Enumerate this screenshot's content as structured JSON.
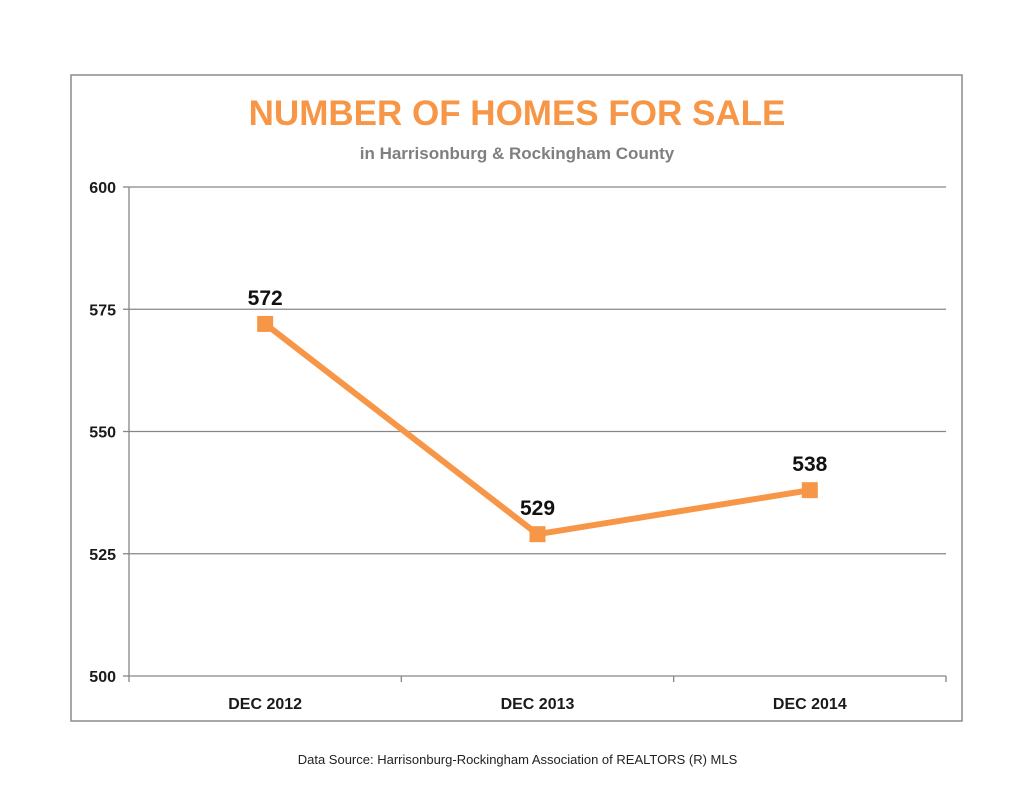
{
  "chart_data": {
    "type": "line",
    "title": "NUMBER OF HOMES  FOR SALE",
    "subtitle": "in Harrisonburg  & Rockingham County",
    "categories": [
      "DEC 2012",
      "DEC 2013",
      "DEC 2014"
    ],
    "values": [
      572,
      529,
      538
    ],
    "data_labels": [
      "572",
      "529",
      "538"
    ],
    "ylim": [
      500,
      600
    ],
    "yticks": [
      "500",
      "525",
      "550",
      "575",
      "600"
    ],
    "grid": true,
    "legend": "none",
    "xlabel": "",
    "ylabel": ""
  },
  "colors": {
    "series": "#f79646",
    "title": "#f79646",
    "subtitle": "#7f7f7f",
    "grid": "#868686",
    "frame": "#8c8c8c"
  },
  "footer": {
    "source": "Data Source: Harrisonburg-Rockingham Association of REALTORS (R) MLS"
  }
}
